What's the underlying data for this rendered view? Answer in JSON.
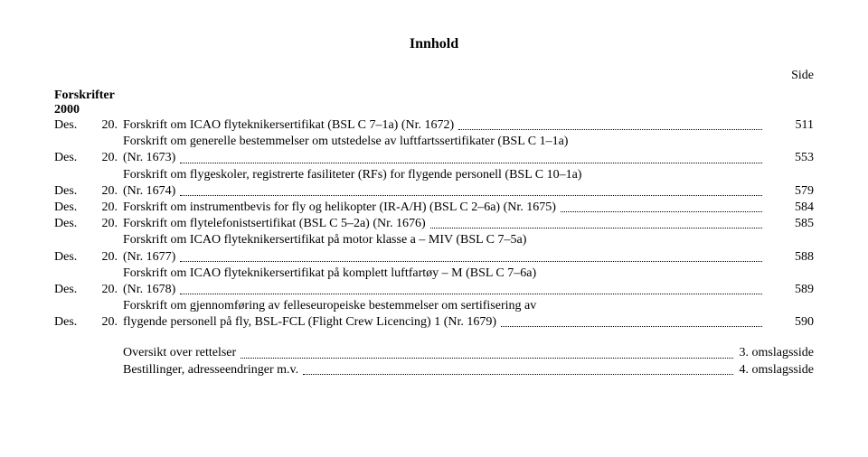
{
  "title": "Innhold",
  "side_label": "Side",
  "section_head": "Forskrifter",
  "year": "2000",
  "entries": [
    {
      "date": "Des.",
      "num": "20.",
      "lines": [
        "Forskrift om ICAO flyteknikersertifikat (BSL C 7–1a) (Nr. 1672)"
      ],
      "page": "511"
    },
    {
      "date": "Des.",
      "num": "20.",
      "lines": [
        "Forskrift om generelle bestemmelser om utstedelse av luftfartssertifikater (BSL C 1–1a)",
        "(Nr. 1673)"
      ],
      "page": "553"
    },
    {
      "date": "Des.",
      "num": "20.",
      "lines": [
        "Forskrift om flygeskoler, registrerte fasiliteter (RFs) for flygende personell (BSL C 10–1a)",
        "(Nr. 1674)"
      ],
      "page": "579"
    },
    {
      "date": "Des.",
      "num": "20.",
      "lines": [
        "Forskrift om instrumentbevis for fly og helikopter (IR-A/H) (BSL C 2–6a) (Nr. 1675)"
      ],
      "page": "584"
    },
    {
      "date": "Des.",
      "num": "20.",
      "lines": [
        "Forskrift om flytelefonistsertifikat (BSL C 5–2a) (Nr. 1676)"
      ],
      "page": "585"
    },
    {
      "date": "Des.",
      "num": "20.",
      "lines": [
        "Forskrift om ICAO flyteknikersertifikat på motor klasse a – MIV (BSL C 7–5a)",
        "(Nr. 1677)"
      ],
      "page": "588"
    },
    {
      "date": "Des.",
      "num": "20.",
      "lines": [
        "Forskrift om ICAO flyteknikersertifikat på komplett luftfartøy – M (BSL C 7–6a)",
        "(Nr. 1678)"
      ],
      "page": "589"
    },
    {
      "date": "Des.",
      "num": "20.",
      "lines": [
        "Forskrift om gjennomføring av felleseuropeiske bestemmelser om sertifisering av",
        "flygende personell på fly, BSL-FCL (Flight Crew Licencing) 1 (Nr. 1679)"
      ],
      "page": "590"
    }
  ],
  "footer": [
    {
      "text": "Oversikt over rettelser",
      "page": "3. omslagsside"
    },
    {
      "text": "Bestillinger, adresseendringer m.v.",
      "page": "4. omslagsside"
    }
  ]
}
